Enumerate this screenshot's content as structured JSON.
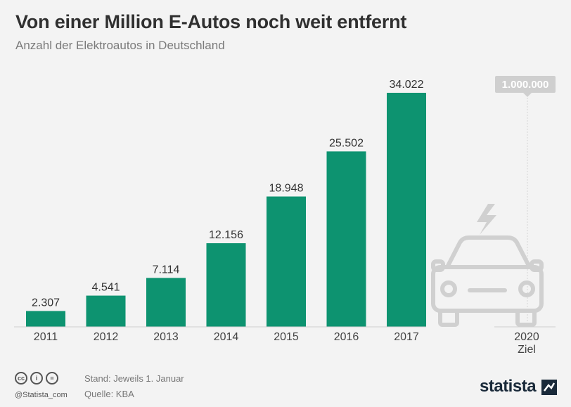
{
  "title": "Von einer Million E-Autos noch weit entfernt",
  "subtitle": "Anzahl der Elektroautos in Deutschland",
  "chart_data": {
    "type": "bar",
    "categories": [
      "2011",
      "2012",
      "2013",
      "2014",
      "2015",
      "2016",
      "2017"
    ],
    "values": [
      2307,
      4541,
      7114,
      12156,
      18948,
      25502,
      34022
    ],
    "value_labels": [
      "2.307",
      "4.541",
      "7.114",
      "12.156",
      "18.948",
      "25.502",
      "34.022"
    ],
    "target": {
      "category": "2020",
      "sublabel": "Ziel",
      "value": 1000000,
      "label": "1.000.000"
    },
    "bar_color": "#0d9370",
    "ylim": [
      0,
      34022
    ],
    "grid": false
  },
  "footer": {
    "license_icons": [
      "cc-icon",
      "by-icon",
      "nd-icon"
    ],
    "license_labels": [
      "cc",
      "i",
      "="
    ],
    "handle": "@Statista_com",
    "note": "Stand: Jeweils 1. Januar",
    "source": "Quelle: KBA",
    "brand": "statista"
  }
}
